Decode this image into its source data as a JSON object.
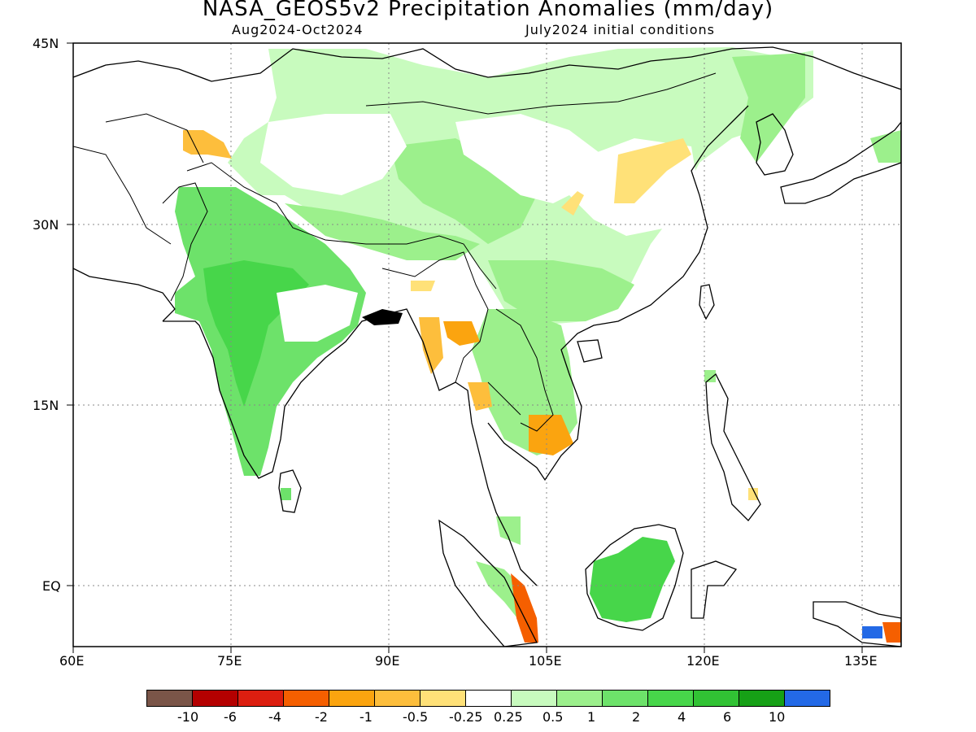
{
  "header": {
    "title": "NASA_GEOS5v2 Precipitation Anomalies (mm/day)",
    "period": "Aug2024-Oct2024",
    "init": "July2024 initial conditions"
  },
  "axes": {
    "y_ticks": [
      "45N",
      "30N",
      "15N",
      "EQ"
    ],
    "x_ticks": [
      "60E",
      "75E",
      "90E",
      "105E",
      "120E",
      "135E"
    ]
  },
  "colorbar": {
    "colors": [
      "#7a5548",
      "#b40000",
      "#dc1e10",
      "#f55f00",
      "#fba40f",
      "#fdbe3c",
      "#ffe178",
      "#ffffff",
      "#c8fbbe",
      "#9cf08c",
      "#6de26a",
      "#47d64a",
      "#31c234",
      "#16a016",
      "#2369e6"
    ],
    "labels": [
      "-10",
      "-6",
      "-4",
      "-2",
      "-1",
      "-0.5",
      "-0.25",
      "0.25",
      "0.5",
      "1",
      "2",
      "4",
      "6",
      "10"
    ]
  },
  "colors": {
    "light_green": "#c8fbbe",
    "mid_green": "#9cf08c",
    "green": "#6de26a",
    "bright_green": "#47d64a",
    "yellow": "#ffe178",
    "light_orange": "#fdbe3c",
    "orange": "#fba40f",
    "dark_orange": "#f55f00"
  }
}
